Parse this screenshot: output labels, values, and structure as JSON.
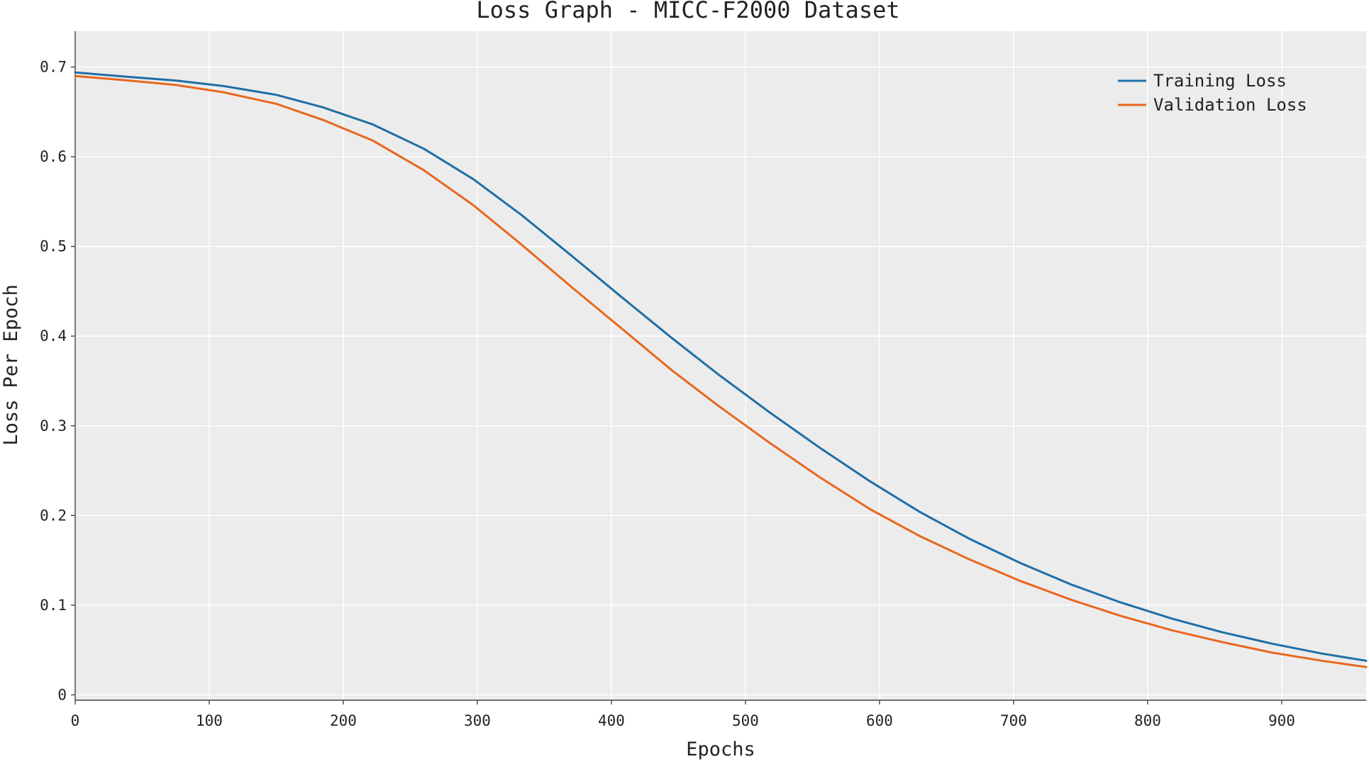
{
  "chart_data": {
    "type": "line",
    "title": "Loss Graph - MICC-F2000 Dataset",
    "xlabel": "Epochs",
    "ylabel": "Loss Per Epoch",
    "xlim": [
      0,
      963
    ],
    "ylim": [
      -0.006,
      0.74
    ],
    "x_ticks": [
      0,
      100,
      200,
      300,
      400,
      500,
      600,
      700,
      800,
      900
    ],
    "y_ticks": [
      0,
      0.1,
      0.2,
      0.3,
      0.4,
      0.5,
      0.6,
      0.7
    ],
    "y_tick_labels": [
      "0",
      "0.1",
      "0.2",
      "0.3",
      "0.4",
      "0.5",
      "0.6",
      "0.7"
    ],
    "grid": true,
    "legend_position": "top-right",
    "background": "#ececec",
    "x": [
      0,
      40,
      75,
      110,
      150,
      185,
      222,
      260,
      297,
      333,
      370,
      408,
      445,
      480,
      518,
      555,
      593,
      630,
      667,
      705,
      743,
      780,
      818,
      855,
      893,
      930,
      963
    ],
    "series": [
      {
        "name": "Training Loss",
        "color": "#1f6ea6",
        "values": [
          0.694,
          0.689,
          0.685,
          0.679,
          0.669,
          0.655,
          0.636,
          0.609,
          0.575,
          0.535,
          0.49,
          0.443,
          0.398,
          0.357,
          0.315,
          0.276,
          0.238,
          0.204,
          0.174,
          0.147,
          0.123,
          0.103,
          0.085,
          0.07,
          0.057,
          0.046,
          0.038
        ]
      },
      {
        "name": "Validation Loss",
        "color": "#e8671e",
        "values": [
          0.69,
          0.685,
          0.68,
          0.672,
          0.659,
          0.641,
          0.618,
          0.585,
          0.546,
          0.502,
          0.455,
          0.408,
          0.362,
          0.322,
          0.281,
          0.243,
          0.207,
          0.177,
          0.151,
          0.127,
          0.106,
          0.088,
          0.072,
          0.059,
          0.047,
          0.038,
          0.031
        ]
      }
    ]
  }
}
